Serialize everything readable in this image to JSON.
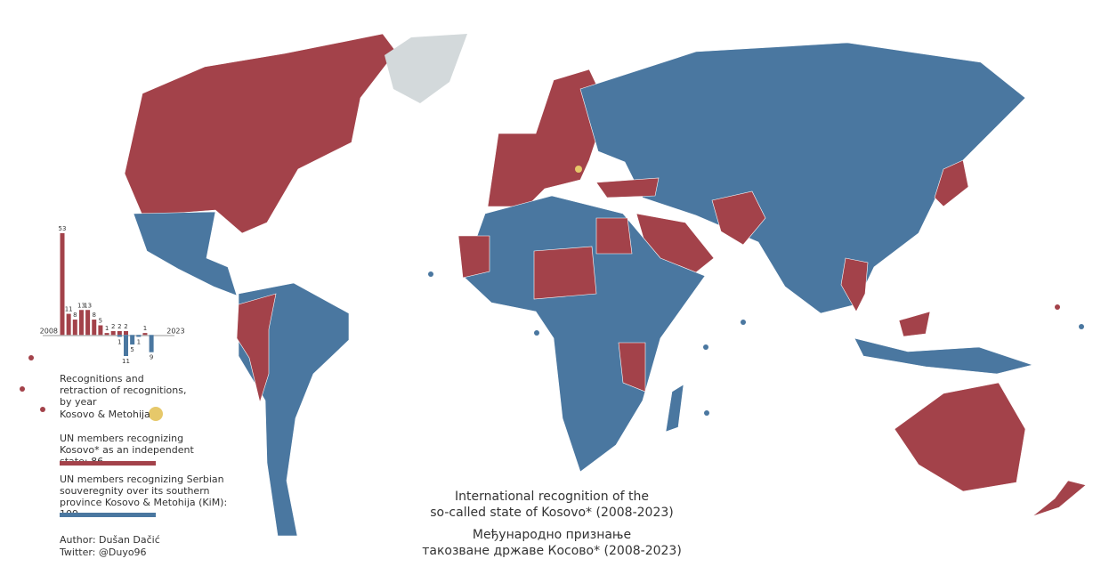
{
  "chart_data": {
    "type": "bar",
    "title": "Recognitions and retraction of recognitions, by year",
    "categories": [
      "2008",
      null,
      null,
      null,
      null,
      null,
      null,
      null,
      null,
      null,
      null,
      null,
      null,
      null,
      null,
      "2023"
    ],
    "series": [
      {
        "color": "#a3424a",
        "values": [
          53,
          11,
          8,
          13,
          13,
          8,
          5,
          1,
          2,
          2,
          2,
          null,
          null,
          1,
          null,
          null
        ]
      },
      {
        "color": "#4a77a0",
        "values": [
          null,
          null,
          null,
          null,
          null,
          null,
          null,
          null,
          null,
          -1,
          -11,
          -5,
          -1,
          null,
          -9,
          null
        ],
        "value_labels": [
          null,
          null,
          null,
          null,
          null,
          null,
          null,
          null,
          null,
          "1",
          "11",
          "5",
          "1",
          null,
          "9",
          null
        ]
      }
    ],
    "ylim": [
      -11,
      53
    ]
  },
  "legend": {
    "kosovo": "Kosovo & Metohija",
    "recognizing": "UN members recognizing Kosovo* as an independent state: 86",
    "sovereignty": "UN members recognizing Serbian souveregnity over its southern province Kosovo & Metohija (KiM): 109"
  },
  "credits": {
    "author": "Author: Dušan Dačić",
    "twitter": "Twitter: @Duyo96"
  },
  "title": {
    "en": [
      "International recognition of the",
      "so-called state of Kosovo* (2008-2023)"
    ],
    "sr": [
      "Међународно признање",
      "такозване државе Косово* (2008-2023)"
    ]
  }
}
